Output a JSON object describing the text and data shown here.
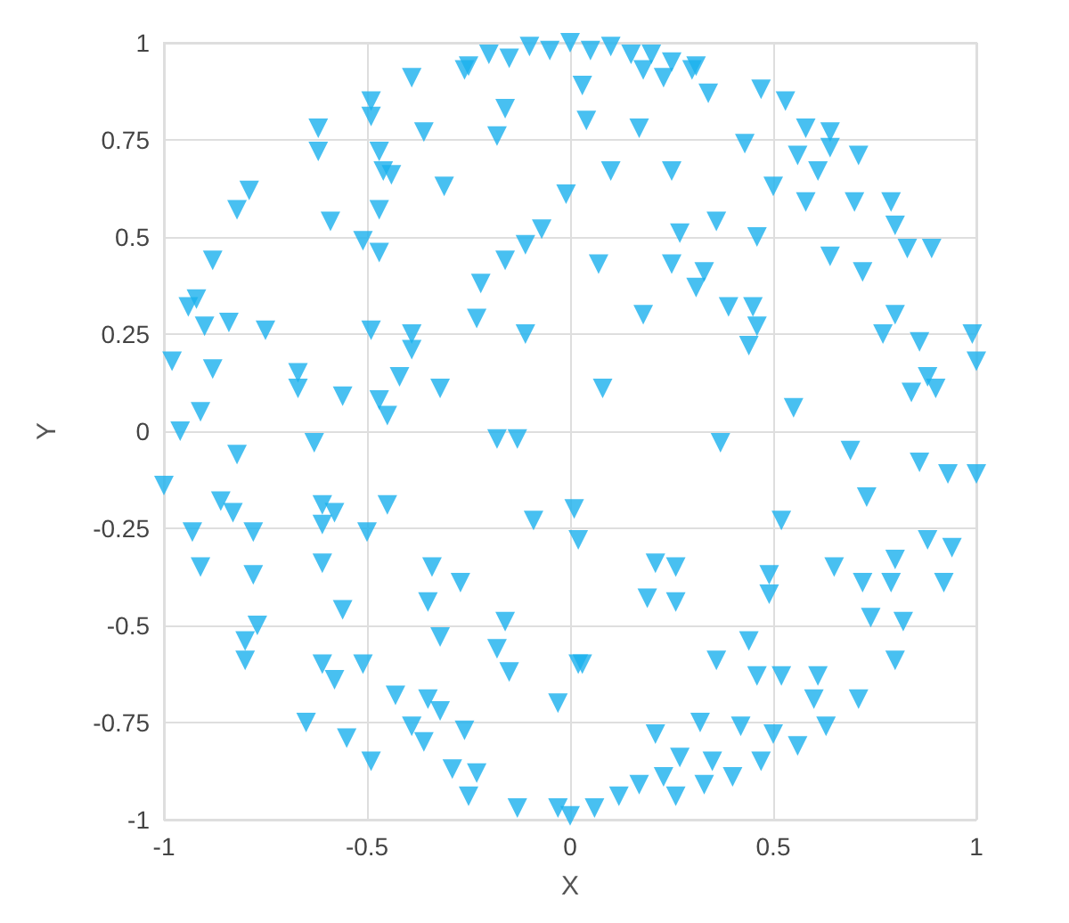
{
  "chart_data": {
    "type": "scatter",
    "xlabel": "X",
    "ylabel": "Y",
    "xlim": [
      -1,
      1
    ],
    "xticks": [
      -1,
      -0.5,
      0,
      0.5,
      1
    ],
    "ylim": [
      -1,
      1
    ],
    "yticks": [
      -1,
      -0.75,
      -0.5,
      -0.25,
      0,
      0.25,
      0.5,
      0.75,
      1
    ],
    "grid": true,
    "marker": "triangle",
    "series": [
      {
        "color": "#1ab0ee",
        "x": [
          0,
          -0.1,
          0.1,
          -0.2,
          0.2,
          -0.05,
          0.05,
          0.15,
          -0.15,
          0.25,
          -0.25,
          0.3,
          -0.39,
          -0.49,
          -0.49,
          -0.62,
          -0.62,
          -0.36,
          -0.47,
          -0.46,
          -0.44,
          -0.31,
          -0.18,
          -0.16,
          -0.26,
          -0.79,
          -0.82,
          -0.59,
          -0.47,
          -0.51,
          -0.47,
          -0.88,
          -0.92,
          -0.94,
          -0.9,
          -0.84,
          -0.75,
          -0.98,
          -0.88,
          -0.91,
          -0.96,
          -0.67,
          -0.67,
          -0.56,
          -0.47,
          -0.45,
          -0.49,
          -0.39,
          -0.39,
          -0.42,
          -0.32,
          -0.23,
          -0.22,
          -0.16,
          -0.11,
          -0.07,
          -0.01,
          -0.11,
          -0.18,
          -0.13,
          0.03,
          0.18,
          0.23,
          0.31,
          0.34,
          0.47,
          0.53,
          0.58,
          0.64,
          0.64,
          0.71,
          0.56,
          0.61,
          0.5,
          0.58,
          0.7,
          0.79,
          0.8,
          0.83,
          0.89,
          0.04,
          0.17,
          0.43,
          0.1,
          0.25,
          0.36,
          0.27,
          0.46,
          0.07,
          0.25,
          0.33,
          0.31,
          0.39,
          0.45,
          0.46,
          0.44,
          0.18,
          0.64,
          0.72,
          0.8,
          0.77,
          0.86,
          0.99,
          1,
          0.88,
          0.84,
          0.9,
          0.08,
          0.55,
          -0.82,
          -0.63,
          -1,
          -0.86,
          -0.83,
          -0.93,
          -0.78,
          -0.91,
          -0.78,
          -0.61,
          -0.58,
          -0.61,
          -0.61,
          -0.45,
          -0.5,
          -0.56,
          -0.77,
          -0.8,
          -0.8,
          -0.61,
          -0.58,
          -0.51,
          -0.65,
          -0.55,
          -0.49,
          -0.34,
          -0.27,
          -0.35,
          -0.32,
          -0.16,
          -0.18,
          -0.15,
          -0.43,
          -0.35,
          -0.32,
          -0.39,
          -0.36,
          -0.26,
          -0.29,
          -0.23,
          -0.25,
          -0.13,
          -0.03,
          0,
          -0.09,
          0.01,
          -0.03,
          0.02,
          0.37,
          0.69,
          0.86,
          0.93,
          1,
          0.73,
          0.52,
          0.88,
          0.94,
          0.92,
          0.02,
          0.21,
          0.26,
          0.19,
          0.26,
          0.49,
          0.49,
          0.65,
          0.72,
          0.8,
          0.79,
          0.74,
          0.82,
          0.8,
          0.03,
          0.44,
          0.36,
          0.46,
          0.52,
          0.61,
          0.6,
          0.71,
          0.21,
          0.32,
          0.42,
          0.5,
          0.56,
          0.63,
          0.27,
          0.35,
          0.4,
          0.47,
          0.23,
          0.26,
          0.17,
          0.12,
          0.06,
          0.33
        ],
        "values": [
          1,
          0.99,
          0.99,
          0.97,
          0.97,
          0.98,
          0.98,
          0.97,
          0.96,
          0.95,
          0.94,
          0.93,
          0.91,
          0.85,
          0.81,
          0.78,
          0.72,
          0.77,
          0.72,
          0.67,
          0.66,
          0.63,
          0.76,
          0.83,
          0.93,
          0.62,
          0.57,
          0.54,
          0.57,
          0.49,
          0.46,
          0.44,
          0.34,
          0.32,
          0.27,
          0.28,
          0.26,
          0.18,
          0.16,
          0.05,
          0,
          0.15,
          0.11,
          0.09,
          0.08,
          0.04,
          0.26,
          0.25,
          0.21,
          0.14,
          0.11,
          0.29,
          0.38,
          0.44,
          0.48,
          0.52,
          0.61,
          0.25,
          -0.02,
          -0.02,
          0.89,
          0.93,
          0.91,
          0.94,
          0.87,
          0.88,
          0.85,
          0.78,
          0.77,
          0.73,
          0.71,
          0.71,
          0.67,
          0.63,
          0.59,
          0.59,
          0.59,
          0.53,
          0.47,
          0.47,
          0.8,
          0.78,
          0.74,
          0.67,
          0.67,
          0.54,
          0.51,
          0.5,
          0.43,
          0.43,
          0.41,
          0.37,
          0.32,
          0.32,
          0.27,
          0.22,
          0.3,
          0.45,
          0.41,
          0.3,
          0.25,
          0.23,
          0.25,
          0.18,
          0.14,
          0.1,
          0.11,
          0.11,
          0.06,
          -0.06,
          -0.03,
          -0.14,
          -0.18,
          -0.21,
          -0.26,
          -0.26,
          -0.35,
          -0.37,
          -0.19,
          -0.21,
          -0.24,
          -0.34,
          -0.19,
          -0.26,
          -0.46,
          -0.5,
          -0.54,
          -0.59,
          -0.6,
          -0.64,
          -0.6,
          -0.75,
          -0.79,
          -0.85,
          -0.35,
          -0.39,
          -0.44,
          -0.53,
          -0.49,
          -0.56,
          -0.62,
          -0.68,
          -0.69,
          -0.72,
          -0.76,
          -0.8,
          -0.77,
          -0.87,
          -0.88,
          -0.94,
          -0.97,
          -0.97,
          -0.99,
          -0.23,
          -0.2,
          -0.7,
          -0.6,
          -0.03,
          -0.05,
          -0.08,
          -0.11,
          -0.11,
          -0.17,
          -0.23,
          -0.28,
          -0.3,
          -0.39,
          -0.28,
          -0.34,
          -0.35,
          -0.43,
          -0.44,
          -0.37,
          -0.42,
          -0.35,
          -0.39,
          -0.33,
          -0.39,
          -0.48,
          -0.49,
          -0.59,
          -0.6,
          -0.54,
          -0.59,
          -0.63,
          -0.63,
          -0.63,
          -0.69,
          -0.69,
          -0.78,
          -0.75,
          -0.76,
          -0.78,
          -0.81,
          -0.76,
          -0.84,
          -0.85,
          -0.89,
          -0.85,
          -0.89,
          -0.94,
          -0.91,
          -0.94,
          -0.97,
          -0.91
        ]
      }
    ]
  }
}
